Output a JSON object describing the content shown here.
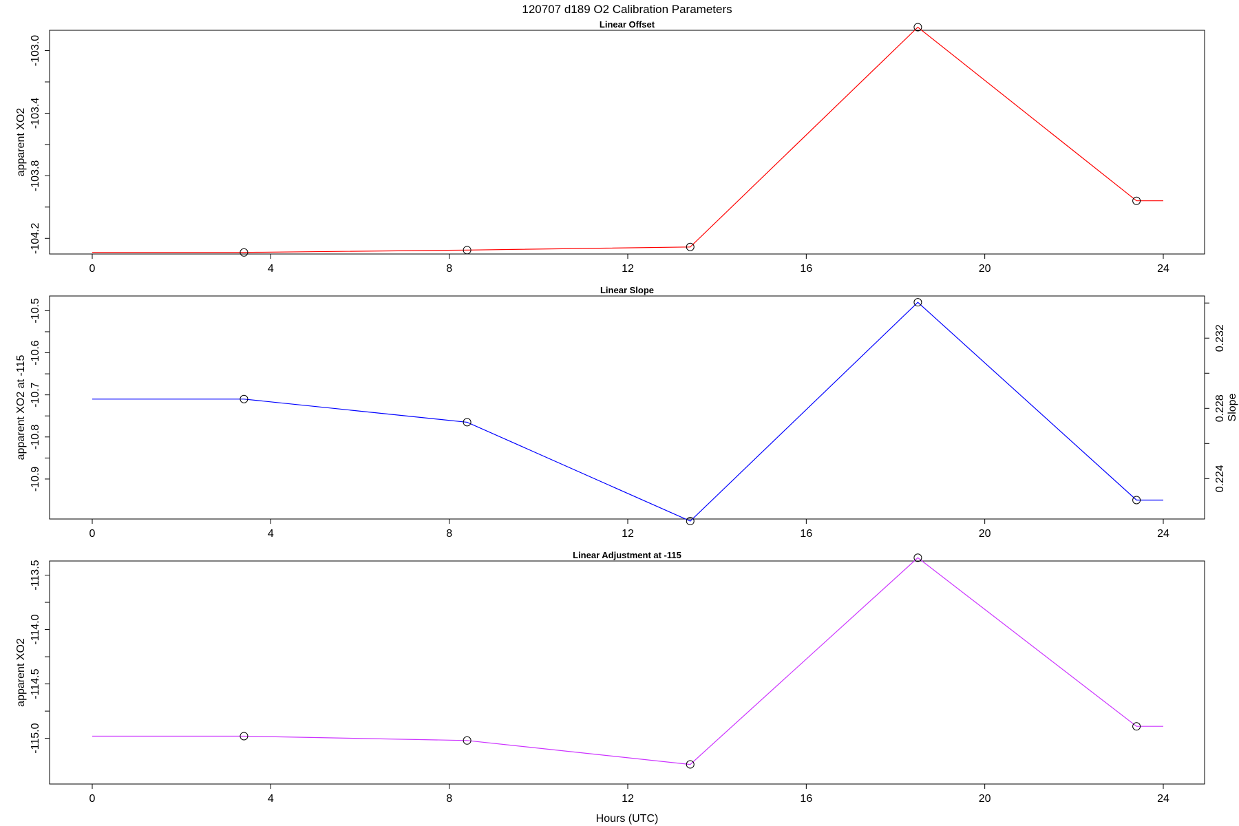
{
  "figure": {
    "title": "120707   d189   O2 Calibration Parameters",
    "xlabel": "Hours (UTC)"
  },
  "chart_data": [
    {
      "type": "line",
      "title": "Linear Offset",
      "xlabel": "",
      "ylabel": "apparent XO2",
      "xlim": [
        0,
        24
      ],
      "ylim": [
        -104.3,
        -102.87
      ],
      "xticks": [
        0,
        4,
        8,
        12,
        16,
        20,
        24
      ],
      "yticks": [
        -104.2,
        -103.8,
        -103.4,
        -103.0
      ],
      "yticklabels": [
        "-104.2",
        "-103.8",
        "-103.4",
        "-103.0"
      ],
      "color": "#ff0000",
      "markers": true,
      "grid": false,
      "points": [
        {
          "x": 0.0,
          "y": -104.29,
          "marker": false
        },
        {
          "x": 3.4,
          "y": -104.29,
          "marker": true
        },
        {
          "x": 8.4,
          "y": -104.275,
          "marker": true
        },
        {
          "x": 13.4,
          "y": -104.255,
          "marker": true
        },
        {
          "x": 18.5,
          "y": -102.85,
          "marker": true
        },
        {
          "x": 23.4,
          "y": -103.96,
          "marker": true
        },
        {
          "x": 24.0,
          "y": -103.96,
          "marker": false
        }
      ]
    },
    {
      "type": "line",
      "title": "Linear Slope",
      "xlabel": "",
      "ylabel": "apparent XO2 at -115",
      "ylabel_right": "Slope",
      "xlim": [
        0,
        24
      ],
      "ylim": [
        -10.995,
        -10.465
      ],
      "xticks": [
        0,
        4,
        8,
        12,
        16,
        20,
        24
      ],
      "yticks": [
        -10.9,
        -10.8,
        -10.7,
        -10.6,
        -10.5
      ],
      "yticklabels": [
        "-10.9",
        "-10.8",
        "-10.7",
        "-10.6",
        "-10.5"
      ],
      "ylim_right": [
        0.2217,
        0.2344
      ],
      "yticks_right": [
        0.224,
        0.226,
        0.228,
        0.23,
        0.232,
        0.234
      ],
      "yticklabels_right": [
        "0.224",
        "",
        "0.228",
        "",
        "0.232",
        ""
      ],
      "color": "#0000ff",
      "markers": true,
      "grid": false,
      "points": [
        {
          "x": 0.0,
          "y": -10.71,
          "marker": false
        },
        {
          "x": 3.4,
          "y": -10.71,
          "marker": true
        },
        {
          "x": 8.4,
          "y": -10.765,
          "marker": true
        },
        {
          "x": 13.4,
          "y": -11.0,
          "marker": true
        },
        {
          "x": 18.5,
          "y": -10.48,
          "marker": true
        },
        {
          "x": 23.4,
          "y": -10.95,
          "marker": true
        },
        {
          "x": 24.0,
          "y": -10.95,
          "marker": false
        }
      ]
    },
    {
      "type": "line",
      "title": "Linear Adjustment at -115",
      "xlabel": "Hours (UTC)",
      "ylabel": "apparent XO2",
      "xlim": [
        0,
        24
      ],
      "ylim": [
        -115.42,
        -113.37
      ],
      "xticks": [
        0,
        4,
        8,
        12,
        16,
        20,
        24
      ],
      "yticks": [
        -115.0,
        -114.5,
        -114.0,
        -113.5
      ],
      "yticklabels": [
        "-115.0",
        "-114.5",
        "-114.0",
        "-113.5"
      ],
      "color": "#cc33ff",
      "markers": true,
      "grid": false,
      "points": [
        {
          "x": 0.0,
          "y": -114.98,
          "marker": false
        },
        {
          "x": 3.4,
          "y": -114.98,
          "marker": true
        },
        {
          "x": 8.4,
          "y": -115.02,
          "marker": true
        },
        {
          "x": 13.4,
          "y": -115.24,
          "marker": true
        },
        {
          "x": 18.5,
          "y": -113.34,
          "marker": true
        },
        {
          "x": 23.4,
          "y": -114.89,
          "marker": true
        },
        {
          "x": 24.0,
          "y": -114.89,
          "marker": false
        }
      ]
    }
  ]
}
